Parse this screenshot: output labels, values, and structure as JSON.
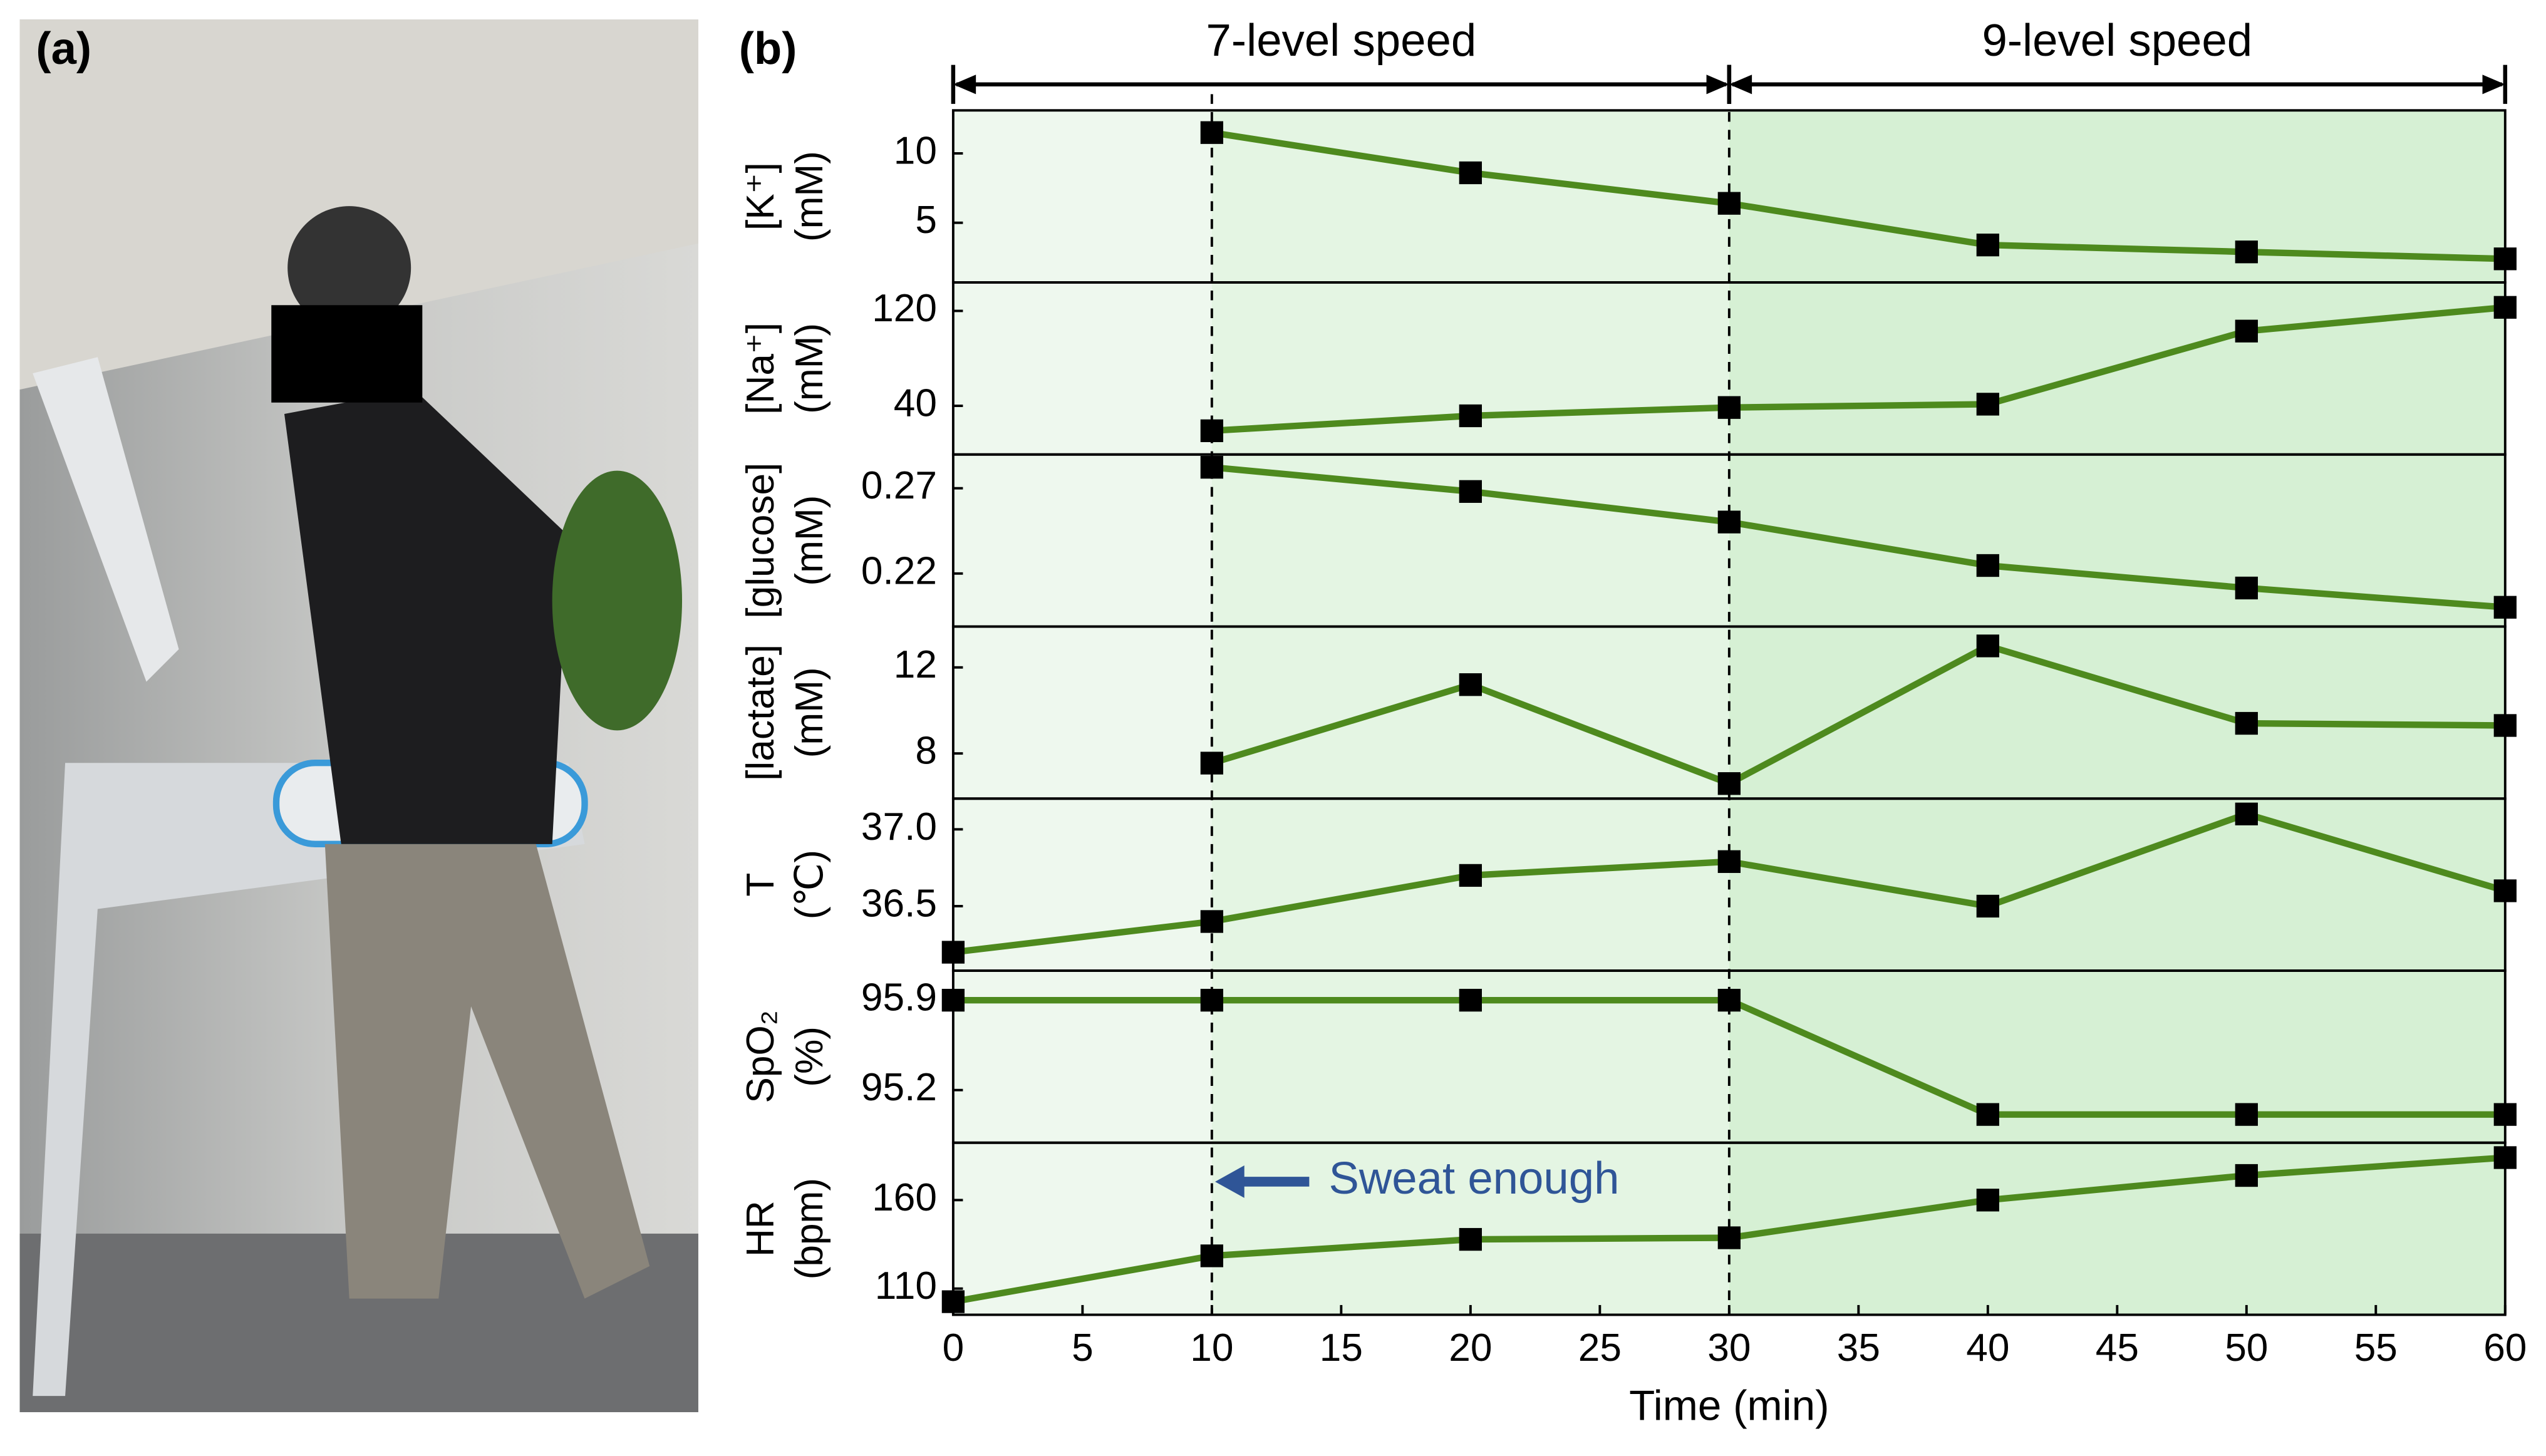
{
  "panel_labels": [
    "(a)",
    "(b)"
  ],
  "chart_data": [
    {
      "type": "line",
      "ylabel": [
        "[K⁺]",
        "(mM)"
      ],
      "x": [
        0,
        10,
        20,
        30,
        40,
        50,
        60
      ],
      "xlim": [
        0,
        60
      ],
      "series": [
        {
          "color": "#4e8a1e",
          "values": [
            null,
            11.5,
            8.6,
            6.4,
            3.4,
            2.9,
            2.4
          ]
        }
      ],
      "ylim": [
        0.7,
        13.1
      ],
      "yticks": [
        5,
        10
      ],
      "spans": [
        {
          "label": "7-level speed",
          "x": [
            0,
            30
          ]
        },
        {
          "label": "9-level speed",
          "x": [
            30,
            60
          ]
        }
      ]
    },
    {
      "type": "line",
      "ylabel": [
        "[Na⁺]",
        "(mM)"
      ],
      "x": [
        0,
        10,
        20,
        30,
        40,
        50,
        60
      ],
      "xlim": [
        0,
        60
      ],
      "series": [
        {
          "color": "#4e8a1e",
          "values": [
            null,
            19,
            31.6,
            38.6,
            41.4,
            103,
            123
          ]
        }
      ],
      "ylim": [
        -1,
        144
      ],
      "yticks": [
        40,
        120
      ]
    },
    {
      "type": "line",
      "ylabel": [
        "[glucose]",
        "(mM)"
      ],
      "x": [
        0,
        10,
        20,
        30,
        40,
        50,
        60
      ],
      "xlim": [
        0,
        60
      ],
      "series": [
        {
          "color": "#4e8a1e",
          "values": [
            null,
            0.2823,
            0.2681,
            0.2502,
            0.2247,
            0.2115,
            0.2002
          ]
        }
      ],
      "ylim": [
        0.1889,
        0.2898
      ],
      "yticks": [
        0.22,
        0.27
      ]
    },
    {
      "type": "line",
      "ylabel": [
        "[lactate]",
        "(mM)"
      ],
      "x": [
        0,
        10,
        20,
        30,
        40,
        50,
        60
      ],
      "xlim": [
        0,
        60
      ],
      "series": [
        {
          "color": "#4e8a1e",
          "values": [
            null,
            7.55,
            11.2,
            6.6,
            13.0,
            9.4,
            9.3
          ]
        }
      ],
      "ylim": [
        5.9,
        13.9
      ],
      "yticks": [
        8,
        12
      ]
    },
    {
      "type": "line",
      "ylabel": [
        "T",
        "(℃)"
      ],
      "x": [
        0,
        10,
        20,
        30,
        40,
        50,
        60
      ],
      "xlim": [
        0,
        60
      ],
      "series": [
        {
          "color": "#4e8a1e",
          "values": [
            36.2,
            36.4,
            36.7,
            36.79,
            36.5,
            37.1,
            36.6
          ]
        }
      ],
      "ylim": [
        36.08,
        37.2
      ],
      "yticks": [
        36.5,
        {
          "value": 37,
          "label": "37.0"
        }
      ]
    },
    {
      "type": "line",
      "ylabel": [
        "SpO₂",
        "(%)"
      ],
      "x": [
        0,
        10,
        20,
        30,
        40,
        50,
        60
      ],
      "xlim": [
        0,
        60
      ],
      "series": [
        {
          "color": "#4e8a1e",
          "values": [
            95.9,
            95.9,
            95.9,
            95.9,
            95.01,
            95.01,
            95.01
          ]
        }
      ],
      "ylim": [
        94.79,
        96.13
      ],
      "yticks": [
        95.2,
        95.9
      ]
    },
    {
      "type": "line",
      "ylabel": [
        "HR",
        "(bpm)"
      ],
      "x": [
        0,
        10,
        20,
        30,
        40,
        50,
        60
      ],
      "xlim": [
        0,
        60
      ],
      "series": [
        {
          "color": "#4e8a1e",
          "values": [
            102.6,
            128.5,
            137.8,
            138.7,
            160,
            173.9,
            184
          ]
        }
      ],
      "ylim": [
        95.2,
        192.4
      ],
      "yticks": [
        110,
        160
      ],
      "xticks": [
        0,
        5,
        10,
        15,
        20,
        25,
        30,
        35,
        40,
        45,
        50,
        55,
        60
      ],
      "xlabel": "Time (min)",
      "annotations": [
        {
          "text": "Sweat enough",
          "x": 10
        }
      ]
    }
  ]
}
